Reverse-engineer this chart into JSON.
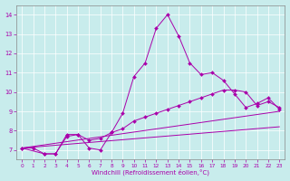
{
  "xlabel": "Windchill (Refroidissement éolien,°C)",
  "background_color": "#c8ecec",
  "line_color": "#aa00aa",
  "xlim": [
    -0.5,
    23.5
  ],
  "ylim": [
    6.5,
    14.5
  ],
  "xticks": [
    0,
    1,
    2,
    3,
    4,
    5,
    6,
    7,
    8,
    9,
    10,
    11,
    12,
    13,
    14,
    15,
    16,
    17,
    18,
    19,
    20,
    21,
    22,
    23
  ],
  "yticks": [
    7,
    8,
    9,
    10,
    11,
    12,
    13,
    14
  ],
  "series": [
    {
      "x": [
        0,
        1,
        2,
        3,
        4,
        5,
        6,
        7,
        8,
        9,
        10,
        11,
        12,
        13,
        14,
        15,
        16,
        17,
        18,
        19,
        20,
        21,
        22,
        23
      ],
      "y": [
        7.1,
        7.1,
        6.8,
        6.8,
        7.8,
        7.8,
        7.1,
        7.0,
        7.9,
        8.9,
        10.8,
        11.5,
        13.3,
        14.0,
        12.9,
        11.5,
        10.9,
        11.0,
        10.6,
        9.9,
        9.2,
        9.4,
        9.7,
        9.1
      ],
      "has_markers": true
    },
    {
      "x": [
        0,
        2,
        3,
        4,
        5,
        6,
        7,
        8,
        9,
        10,
        11,
        12,
        13,
        14,
        15,
        16,
        17,
        18,
        19,
        20,
        21,
        22,
        23
      ],
      "y": [
        7.1,
        6.8,
        6.8,
        7.7,
        7.8,
        7.5,
        7.6,
        7.9,
        8.1,
        8.5,
        8.7,
        8.9,
        9.1,
        9.3,
        9.5,
        9.7,
        9.9,
        10.1,
        10.1,
        10.0,
        9.3,
        9.5,
        9.2
      ],
      "has_markers": true
    },
    {
      "x": [
        0,
        23
      ],
      "y": [
        7.1,
        8.2
      ],
      "has_markers": false
    },
    {
      "x": [
        0,
        23
      ],
      "y": [
        7.1,
        9.0
      ],
      "has_markers": false
    }
  ]
}
